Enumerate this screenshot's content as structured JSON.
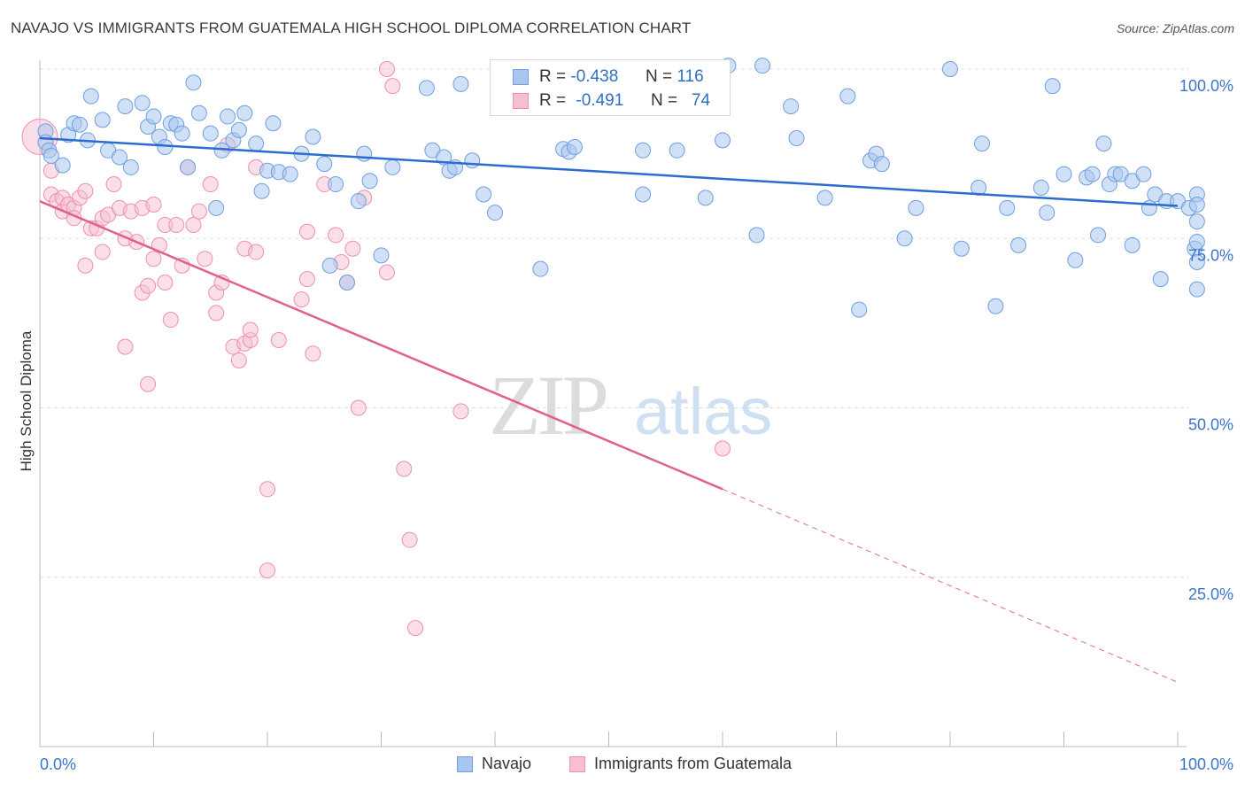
{
  "header": {
    "title": "NAVAJO VS IMMIGRANTS FROM GUATEMALA HIGH SCHOOL DIPLOMA CORRELATION CHART",
    "source": "Source: ZipAtlas.com"
  },
  "watermark": {
    "zip": "ZIP",
    "atlas": "atlas"
  },
  "legend_box": {
    "rows": [
      {
        "r_label": "R =",
        "r_value": "-0.438",
        "n_label": "N =",
        "n_value": "116",
        "color": "#6f9fe0"
      },
      {
        "r_label": "R =",
        "r_value": "-0.491",
        "n_label": "N =",
        "n_value": "74",
        "color": "#ee8fb0"
      }
    ]
  },
  "colors": {
    "navajo_fill": "#a9c6ee",
    "navajo_stroke": "#6f9fe0",
    "navajo_line": "#2a6ccf",
    "guat_fill": "#f6bfd1",
    "guat_stroke": "#ee8fb0",
    "guat_line": "#e0608f",
    "grid": "#dddddd",
    "tick_label": "#3a74c9"
  },
  "chart_data": {
    "type": "scatter",
    "title": "NAVAJO VS IMMIGRANTS FROM GUATEMALA HIGH SCHOOL DIPLOMA CORRELATION CHART",
    "xlabel": "",
    "ylabel": "High School Diploma",
    "xlim": [
      0,
      100
    ],
    "ylim": [
      0,
      105
    ],
    "x_tick_labels": [
      "0.0%",
      "100.0%"
    ],
    "y_ticks": [
      25,
      50,
      75,
      100
    ],
    "y_tick_labels": [
      "25.0%",
      "50.0%",
      "75.0%",
      "100.0%"
    ],
    "grid": true,
    "legend_position": "top-center",
    "series": [
      {
        "name": "Navajo",
        "points": [
          [
            0.5,
            90.8
          ],
          [
            0.5,
            89.2
          ],
          [
            0.8,
            88
          ],
          [
            1,
            87.2
          ],
          [
            2,
            85.8
          ],
          [
            2.5,
            90.3
          ],
          [
            3,
            92
          ],
          [
            3.5,
            91.8
          ],
          [
            4.2,
            89.5
          ],
          [
            4.5,
            96
          ],
          [
            5.5,
            92.5
          ],
          [
            6,
            88
          ],
          [
            7,
            87
          ],
          [
            7.5,
            94.5
          ],
          [
            8,
            85.5
          ],
          [
            9,
            95
          ],
          [
            9.5,
            91.5
          ],
          [
            10,
            93
          ],
          [
            10.5,
            90
          ],
          [
            11,
            88.5
          ],
          [
            11.5,
            92
          ],
          [
            12,
            91.8
          ],
          [
            12.5,
            90.5
          ],
          [
            13,
            85.5
          ],
          [
            13.5,
            98
          ],
          [
            14,
            93.5
          ],
          [
            15,
            90.5
          ],
          [
            15.5,
            79.5
          ],
          [
            16,
            88
          ],
          [
            16.5,
            93
          ],
          [
            17,
            89.5
          ],
          [
            17.5,
            91
          ],
          [
            18,
            93.5
          ],
          [
            19,
            89
          ],
          [
            19.5,
            82
          ],
          [
            20,
            85
          ],
          [
            20.5,
            92
          ],
          [
            21,
            84.8
          ],
          [
            22,
            84.5
          ],
          [
            23,
            87.5
          ],
          [
            24,
            90
          ],
          [
            25,
            86
          ],
          [
            25.5,
            71
          ],
          [
            26,
            83
          ],
          [
            27,
            68.5
          ],
          [
            28,
            80.5
          ],
          [
            28.5,
            87.5
          ],
          [
            29,
            83.5
          ],
          [
            30,
            72.5
          ],
          [
            31,
            85.5
          ],
          [
            34,
            97.2
          ],
          [
            34.5,
            88
          ],
          [
            35.5,
            87
          ],
          [
            36,
            85
          ],
          [
            36.5,
            85.5
          ],
          [
            37,
            97.8
          ],
          [
            38,
            86.5
          ],
          [
            39,
            81.5
          ],
          [
            40,
            78.8
          ],
          [
            44,
            70.5
          ],
          [
            46,
            88.2
          ],
          [
            46.5,
            87.8
          ],
          [
            47,
            88.5
          ],
          [
            53,
            81.5
          ],
          [
            53,
            88
          ],
          [
            54,
            100.2
          ],
          [
            56,
            88
          ],
          [
            58.5,
            81
          ],
          [
            60,
            89.5
          ],
          [
            60.5,
            100.5
          ],
          [
            63,
            75.5
          ],
          [
            63.5,
            100.5
          ],
          [
            66,
            94.5
          ],
          [
            66.5,
            89.8
          ],
          [
            69,
            81
          ],
          [
            71,
            96
          ],
          [
            72,
            64.5
          ],
          [
            73,
            86.5
          ],
          [
            73.5,
            87.5
          ],
          [
            74,
            86
          ],
          [
            76,
            75
          ],
          [
            77,
            79.5
          ],
          [
            80,
            100
          ],
          [
            81,
            73.5
          ],
          [
            82.5,
            82.5
          ],
          [
            82.8,
            89
          ],
          [
            84,
            65
          ],
          [
            85,
            79.5
          ],
          [
            86,
            74
          ],
          [
            88,
            82.5
          ],
          [
            88.5,
            78.8
          ],
          [
            89,
            97.5
          ],
          [
            90,
            84.5
          ],
          [
            91,
            71.8
          ],
          [
            92,
            84
          ],
          [
            92.5,
            84.5
          ],
          [
            93,
            75.5
          ],
          [
            93.5,
            89
          ],
          [
            94,
            83
          ],
          [
            94.5,
            84.5
          ],
          [
            95,
            84.5
          ],
          [
            96,
            74
          ],
          [
            96,
            83.5
          ],
          [
            97,
            84.5
          ],
          [
            97.5,
            79.5
          ],
          [
            98,
            81.5
          ],
          [
            98.5,
            69
          ],
          [
            99,
            80.5
          ],
          [
            100,
            80.5
          ],
          [
            101,
            79.5
          ],
          [
            101.5,
            73.5
          ],
          [
            102,
            77.5
          ],
          [
            102.5,
            71.5
          ],
          [
            103,
            67.5
          ],
          [
            104,
            81.5
          ],
          [
            104.3,
            74.5
          ],
          [
            105,
            80
          ]
        ],
        "trend": {
          "x": [
            0,
            100
          ],
          "y": [
            89.8,
            79.8
          ]
        }
      },
      {
        "name": "Immigrants from Guatemala",
        "points": [
          [
            0,
            90
          ],
          [
            1,
            85
          ],
          [
            1,
            81.5
          ],
          [
            1.5,
            80.5
          ],
          [
            2,
            79
          ],
          [
            2,
            81
          ],
          [
            2.5,
            80
          ],
          [
            3,
            79.5
          ],
          [
            3,
            78
          ],
          [
            3.5,
            81
          ],
          [
            4,
            82
          ],
          [
            4,
            71
          ],
          [
            4.5,
            76.5
          ],
          [
            5,
            76.5
          ],
          [
            5.5,
            73
          ],
          [
            5.5,
            78
          ],
          [
            6,
            78.5
          ],
          [
            6.5,
            83
          ],
          [
            7,
            79.5
          ],
          [
            7.5,
            75
          ],
          [
            7.5,
            59
          ],
          [
            8,
            79
          ],
          [
            8.5,
            74.5
          ],
          [
            9,
            67
          ],
          [
            9,
            79.5
          ],
          [
            9.5,
            68
          ],
          [
            9.5,
            53.5
          ],
          [
            10,
            72
          ],
          [
            10,
            80
          ],
          [
            10.5,
            74
          ],
          [
            11,
            77
          ],
          [
            11,
            68.5
          ],
          [
            11.5,
            63
          ],
          [
            12,
            77
          ],
          [
            12.5,
            71
          ],
          [
            13,
            85.5
          ],
          [
            13.5,
            77
          ],
          [
            14,
            79
          ],
          [
            14.5,
            72
          ],
          [
            15,
            83
          ],
          [
            15.5,
            64
          ],
          [
            15.5,
            67
          ],
          [
            16,
            68.5
          ],
          [
            16.5,
            88.8
          ],
          [
            17,
            59
          ],
          [
            17.5,
            57
          ],
          [
            18,
            73.5
          ],
          [
            18,
            59.5
          ],
          [
            18.5,
            60
          ],
          [
            18.5,
            61.5
          ],
          [
            19,
            73
          ],
          [
            19,
            85.5
          ],
          [
            20,
            38
          ],
          [
            20,
            26
          ],
          [
            21,
            60
          ],
          [
            23,
            66
          ],
          [
            23.5,
            76
          ],
          [
            23.5,
            69
          ],
          [
            24,
            58
          ],
          [
            25,
            83
          ],
          [
            26,
            75.5
          ],
          [
            26.5,
            71.5
          ],
          [
            27,
            68.5
          ],
          [
            27.5,
            73.5
          ],
          [
            28,
            50
          ],
          [
            28.5,
            81
          ],
          [
            30.5,
            100
          ],
          [
            30.5,
            70
          ],
          [
            31,
            97.5
          ],
          [
            32,
            41
          ],
          [
            32.5,
            30.5
          ],
          [
            33,
            17.5
          ],
          [
            37,
            49.5
          ],
          [
            60,
            44
          ]
        ],
        "trend": {
          "x": [
            0,
            60
          ],
          "y": [
            80.5,
            38
          ],
          "dashed_extension": {
            "x": [
              60,
              100
            ],
            "y": [
              38,
              9.5
            ]
          }
        }
      }
    ]
  }
}
